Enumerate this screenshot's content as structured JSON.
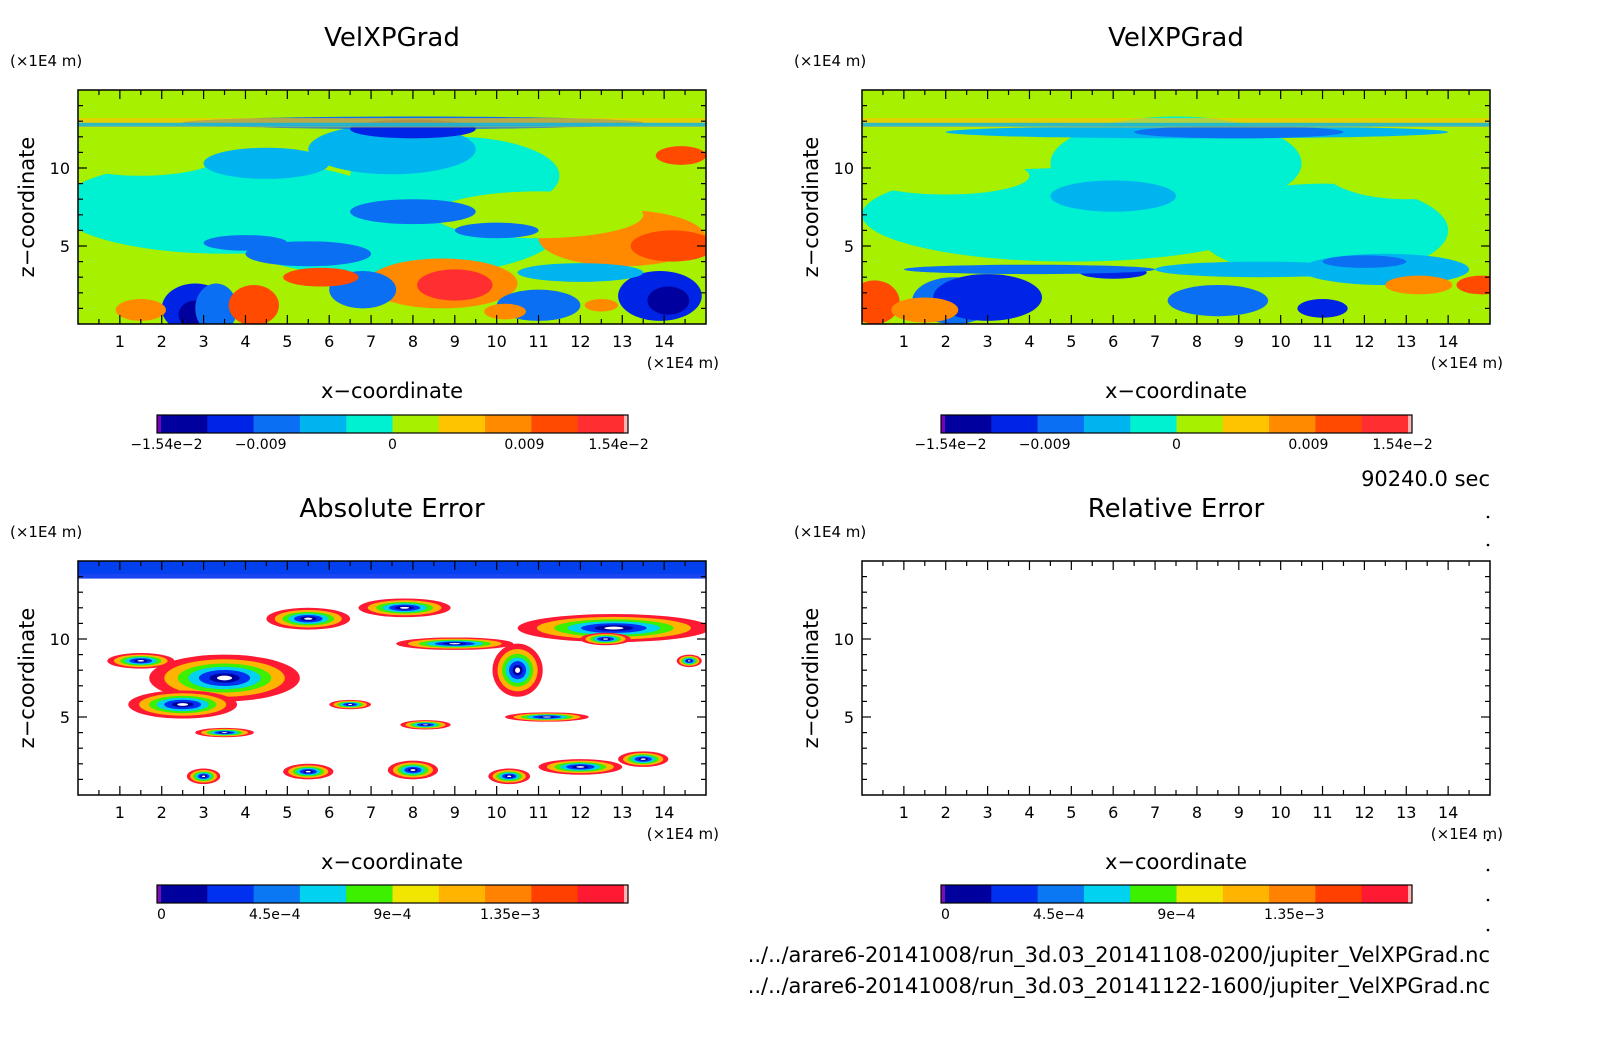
{
  "timestamp": "90240.0 sec",
  "footer": {
    "line1": "../../arare6-20141008/run_3d.03_20141108-0200/jupiter_VelXPGrad.nc",
    "line2": "../../arare6-20141008/run_3d.03_20141122-1600/jupiter_VelXPGrad.nc"
  },
  "colors": {
    "velocity_scale": [
      "#7a00b8",
      "#00009e",
      "#0024e6",
      "#0a6ff2",
      "#00b4f0",
      "#00f0d2",
      "#a6f000",
      "#ffc400",
      "#ff8a00",
      "#ff4a00",
      "#ff2e30",
      "#ffb3b3"
    ],
    "error_scale": [
      "#7a0fb0",
      "#00009e",
      "#0030f0",
      "#0a78f2",
      "#00d2f0",
      "#3cf000",
      "#f0e600",
      "#ffb400",
      "#ff8200",
      "#ff4000",
      "#ff1a33",
      "#ffb3b3"
    ]
  },
  "chart_data": [
    {
      "type": "heatmap",
      "title": "VelXPGrad",
      "xlabel": "x−coordinate",
      "ylabel": "z−coordinate",
      "x_unit": "(×1E4 m)",
      "y_unit": "(×1E4 m)",
      "xticks": [
        1,
        2,
        3,
        4,
        5,
        6,
        7,
        8,
        9,
        10,
        11,
        12,
        13,
        14
      ],
      "yticks": [
        5,
        10
      ],
      "xlim": [
        0,
        15
      ],
      "ylim": [
        0,
        15
      ],
      "colorbar": {
        "range": [
          -0.0154,
          0.0154
        ],
        "labels": [
          "−1.54e−2",
          "−0.009",
          "0",
          "0.009",
          "1.54e−2"
        ]
      }
    },
    {
      "type": "heatmap",
      "title": "VelXPGrad",
      "xlabel": "x−coordinate",
      "ylabel": "z−coordinate",
      "x_unit": "(×1E4 m)",
      "y_unit": "(×1E4 m)",
      "xticks": [
        1,
        2,
        3,
        4,
        5,
        6,
        7,
        8,
        9,
        10,
        11,
        12,
        13,
        14
      ],
      "yticks": [
        5,
        10
      ],
      "xlim": [
        0,
        15
      ],
      "ylim": [
        0,
        15
      ],
      "colorbar": {
        "range": [
          -0.0154,
          0.0154
        ],
        "labels": [
          "−1.54e−2",
          "−0.009",
          "0",
          "0.009",
          "1.54e−2"
        ]
      }
    },
    {
      "type": "heatmap",
      "title": "Absolute Error",
      "xlabel": "x−coordinate",
      "ylabel": "z−coordinate",
      "x_unit": "(×1E4 m)",
      "y_unit": "(×1E4 m)",
      "xticks": [
        1,
        2,
        3,
        4,
        5,
        6,
        7,
        8,
        9,
        10,
        11,
        12,
        13,
        14
      ],
      "yticks": [
        5,
        10
      ],
      "xlim": [
        0,
        15
      ],
      "ylim": [
        0,
        15
      ],
      "colorbar": {
        "range": [
          0,
          0.0018
        ],
        "labels": [
          "0",
          "4.5e−4",
          "9e−4",
          "1.35e−3"
        ]
      }
    },
    {
      "type": "heatmap",
      "title": "Relative Error",
      "xlabel": "x−coordinate",
      "ylabel": "z−coordinate",
      "x_unit": "(×1E4 m)",
      "y_unit": "(×1E4 m)",
      "xticks": [
        1,
        2,
        3,
        4,
        5,
        6,
        7,
        8,
        9,
        10,
        11,
        12,
        13,
        14
      ],
      "yticks": [
        5,
        10
      ],
      "xlim": [
        0,
        15
      ],
      "ylim": [
        0,
        15
      ],
      "colorbar": {
        "range": [
          0,
          0.0018
        ],
        "labels": [
          "0",
          "4.5e−4",
          "9e−4",
          "1.35e−3"
        ]
      }
    }
  ]
}
